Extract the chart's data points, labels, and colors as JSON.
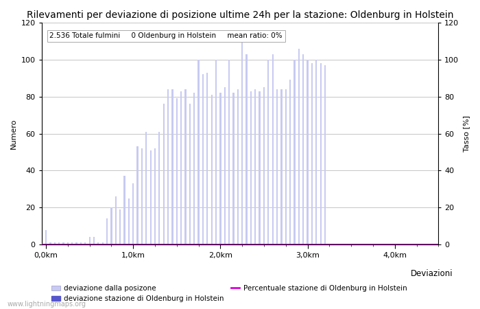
{
  "title": "Rilevamenti per deviazione di posizione ultime 24h per la stazione: Oldenburg in Holstein",
  "annotation": "2.536 Totale fulmini     0 Oldenburg in Holstein     mean ratio: 0%",
  "ylabel_left": "Numero",
  "ylabel_right": "Tasso [%]",
  "legend_right_label": "Deviazioni",
  "ylim": [
    0,
    120
  ],
  "bar_values": [
    8,
    1,
    1,
    1,
    1,
    1,
    1,
    1,
    1,
    1,
    4,
    4,
    1,
    1,
    14,
    20,
    26,
    19,
    37,
    25,
    33,
    53,
    52,
    61,
    51,
    52,
    61,
    76,
    84,
    84,
    79,
    83,
    84,
    76,
    82,
    100,
    92,
    93,
    81,
    100,
    82,
    85,
    100,
    82,
    84,
    113,
    103,
    83,
    84,
    83,
    85,
    100,
    103,
    84,
    84,
    84,
    89,
    100,
    106,
    103,
    100,
    98,
    100,
    98,
    97
  ],
  "bar_color_light": "#c8caf2",
  "bar_color_dark": "#5555cc",
  "station_bar_values": [
    0,
    0,
    0,
    0,
    0,
    0,
    0,
    0,
    0,
    0,
    0,
    0,
    0,
    0,
    0,
    0,
    0,
    0,
    0,
    0,
    0,
    0,
    0,
    0,
    0,
    0,
    0,
    0,
    0,
    0,
    0,
    0,
    0,
    0,
    0,
    0,
    0,
    0,
    0,
    0,
    0,
    0,
    0,
    0,
    0,
    0,
    0,
    0,
    0,
    0,
    0,
    0,
    0,
    0,
    0,
    0,
    0,
    0,
    0,
    0,
    0,
    0,
    0,
    0,
    0
  ],
  "percent_line_color": "#dd00dd",
  "background_color": "#ffffff",
  "grid_color": "#bbbbbb",
  "title_fontsize": 10,
  "axis_fontsize": 8,
  "tick_fontsize": 8,
  "annotation_fontsize": 7.5,
  "legend_label_light": "deviazione dalla posizone",
  "legend_label_dark": "deviazione stazione di Oldenburg in Holstein",
  "legend_label_line": "Percentuale stazione di Oldenburg in Holstein",
  "legend_extra": "Deviazioni",
  "watermark": "www.lightningmaps.org",
  "xtick_positions": [
    0,
    20,
    40,
    60,
    80
  ],
  "xtick_labels": [
    "0,0km",
    "1,0km",
    "2,0km",
    "3,0km",
    "4,0km"
  ],
  "xlim": [
    -1,
    90
  ],
  "n_bars": 65,
  "bar_width": 0.35
}
